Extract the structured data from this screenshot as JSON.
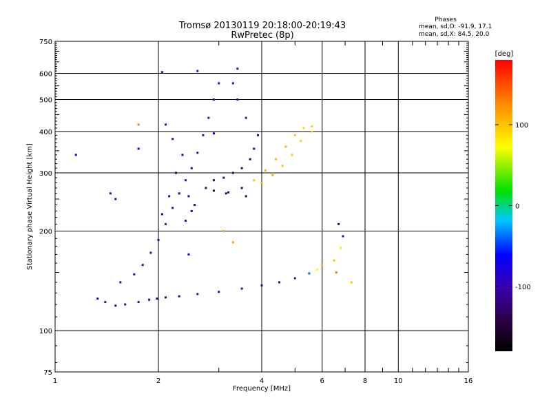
{
  "chart_data": {
    "type": "scatter",
    "title": "Tromsø 20130119 20:18:00-20:19:43",
    "subtitle": "RwPretec (8p)",
    "xlabel": "Frequency [MHz]",
    "ylabel": "Stationary phase Virtual Height [km]",
    "x_scale": "log",
    "y_scale": "log",
    "xlim": [
      1,
      16
    ],
    "ylim": [
      75,
      750
    ],
    "x_ticks": [
      1,
      2,
      4,
      6,
      8,
      10,
      16
    ],
    "x_minor_ticks": [
      3,
      5,
      7,
      9,
      11,
      12,
      13,
      14,
      15
    ],
    "y_ticks": [
      75,
      100,
      200,
      300,
      400,
      500,
      600,
      750
    ],
    "grid": true,
    "annotations": {
      "header": "Phases",
      "line1": "mean, sd,O: -91.9, 17.1",
      "line2": "mean, sd,X:  84.5, 20.0"
    },
    "colorbar": {
      "label": "[deg]",
      "range": [
        -180,
        180
      ],
      "ticks": [
        100,
        0,
        -100
      ]
    },
    "series": [
      {
        "points": [
          [
            1.33,
            125
          ],
          [
            1.4,
            122
          ],
          [
            1.5,
            119
          ],
          [
            1.6,
            120
          ],
          [
            1.75,
            122
          ],
          [
            1.88,
            124
          ],
          [
            1.98,
            125
          ],
          [
            2.1,
            126
          ],
          [
            2.3,
            127
          ],
          [
            2.6,
            129
          ],
          [
            3.0,
            131
          ],
          [
            3.5,
            134
          ],
          [
            4.0,
            137
          ],
          [
            4.5,
            140
          ],
          [
            5.0,
            144
          ],
          [
            5.5,
            149
          ],
          [
            5.8,
            153
          ],
          [
            6.0,
            158
          ],
          [
            6.5,
            163
          ],
          [
            6.8,
            178
          ],
          [
            6.9,
            193
          ],
          [
            6.7,
            210
          ],
          [
            1.55,
            140
          ],
          [
            1.7,
            148
          ],
          [
            1.8,
            158
          ],
          [
            1.9,
            172
          ],
          [
            2.0,
            188
          ],
          [
            2.1,
            210
          ],
          [
            2.2,
            235
          ],
          [
            2.3,
            260
          ],
          [
            2.4,
            285
          ],
          [
            2.5,
            310
          ],
          [
            2.6,
            345
          ],
          [
            2.7,
            390
          ],
          [
            2.8,
            440
          ],
          [
            2.9,
            500
          ],
          [
            3.0,
            560
          ],
          [
            2.6,
            610
          ],
          [
            2.05,
            225
          ],
          [
            2.15,
            255
          ],
          [
            2.25,
            300
          ],
          [
            2.35,
            340
          ],
          [
            2.2,
            380
          ],
          [
            2.1,
            420
          ],
          [
            2.45,
            255
          ],
          [
            2.55,
            240
          ],
          [
            2.75,
            270
          ],
          [
            2.9,
            285
          ],
          [
            3.1,
            290
          ],
          [
            3.3,
            300
          ],
          [
            3.5,
            310
          ],
          [
            3.7,
            330
          ],
          [
            3.8,
            355
          ],
          [
            3.9,
            390
          ],
          [
            3.6,
            440
          ],
          [
            3.4,
            500
          ],
          [
            3.3,
            560
          ],
          [
            3.4,
            620
          ],
          [
            2.9,
            265
          ],
          [
            3.2,
            262
          ],
          [
            3.5,
            270
          ],
          [
            3.8,
            285
          ],
          [
            4.1,
            305
          ],
          [
            4.4,
            330
          ],
          [
            4.7,
            360
          ],
          [
            5.0,
            390
          ],
          [
            5.3,
            410
          ],
          [
            5.6,
            415
          ],
          [
            4.0,
            280
          ],
          [
            4.3,
            295
          ],
          [
            4.6,
            315
          ],
          [
            4.9,
            340
          ],
          [
            5.2,
            375
          ],
          [
            5.6,
            400
          ],
          [
            1.15,
            340
          ],
          [
            1.5,
            250
          ],
          [
            1.45,
            260
          ],
          [
            1.75,
            355
          ],
          [
            1.75,
            420
          ],
          [
            2.05,
            605
          ],
          [
            3.1,
            200
          ],
          [
            3.3,
            185
          ],
          [
            6.6,
            150
          ],
          [
            7.3,
            140
          ],
          [
            2.9,
            395
          ],
          [
            3.15,
            260
          ],
          [
            3.6,
            255
          ],
          [
            2.4,
            215
          ],
          [
            2.45,
            170
          ],
          [
            2.5,
            230
          ]
        ],
        "phases": [
          -100,
          -100,
          -95,
          -100,
          -100,
          -105,
          -110,
          -110,
          -105,
          -100,
          -100,
          -95,
          -105,
          -110,
          -100,
          -40,
          70,
          110,
          100,
          80,
          -100,
          -110,
          -100,
          -95,
          -100,
          -100,
          -105,
          -100,
          -100,
          -100,
          -95,
          -100,
          -95,
          -100,
          -100,
          -95,
          -100,
          -95,
          -110,
          -110,
          -120,
          -110,
          -100,
          -100,
          -115,
          -110,
          -120,
          -120,
          -125,
          -130,
          -130,
          -125,
          -120,
          -110,
          -100,
          -100,
          -100,
          -100,
          -130,
          -130,
          -125,
          100,
          110,
          105,
          110,
          100,
          90,
          95,
          110,
          105,
          100,
          95,
          90,
          95,
          -80,
          -90,
          -100,
          -60,
          130,
          -110,
          110,
          120,
          130,
          100,
          -60,
          -120,
          -140,
          -105,
          -90,
          -90
        ]
      }
    ]
  }
}
